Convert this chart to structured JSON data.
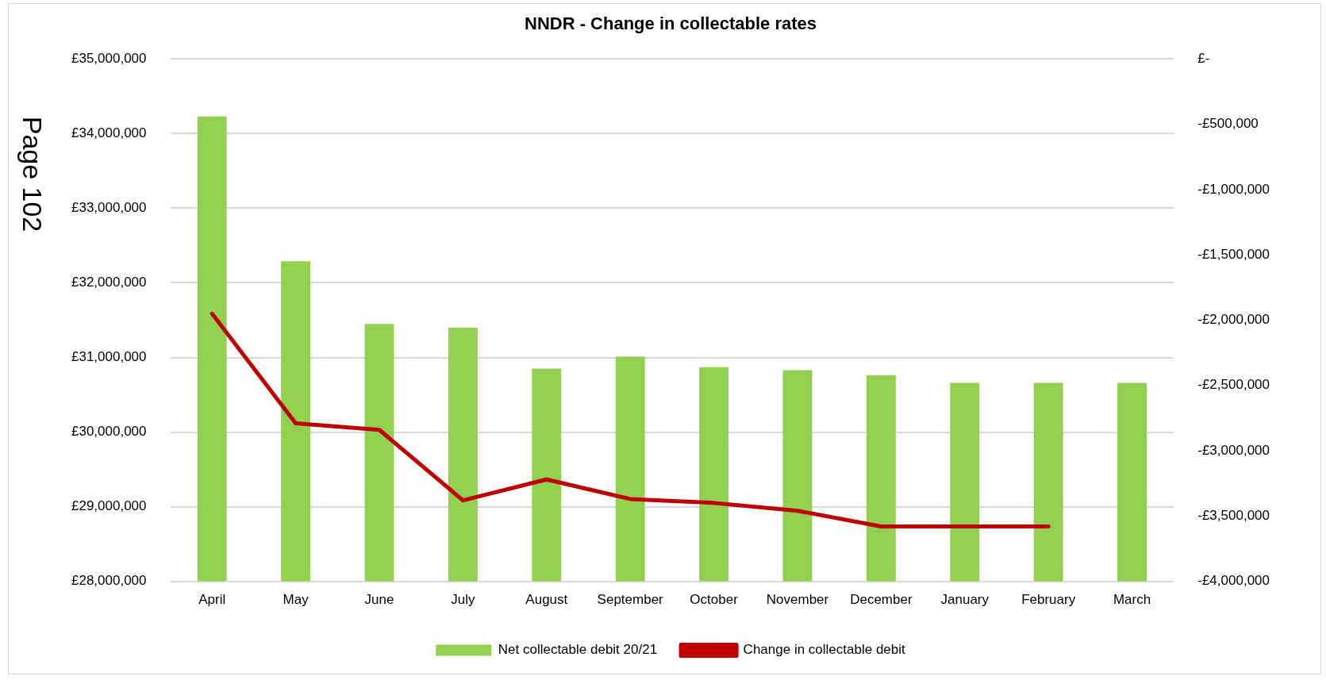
{
  "chart_data": {
    "type": "bar",
    "title": "NNDR - Change in collectable rates",
    "categories": [
      "April",
      "May",
      "June",
      "July",
      "August",
      "September",
      "October",
      "November",
      "December",
      "January",
      "February",
      "March"
    ],
    "series": [
      {
        "name": "Net collectable debit 20/21",
        "color": "#92d050",
        "values": [
          34230000,
          32290000,
          31450000,
          31400000,
          30850000,
          31010000,
          30870000,
          30830000,
          30760000,
          30660000,
          30660000,
          30660000
        ]
      },
      {
        "name": "Change in collectable debit",
        "type": "line",
        "axis": "y2",
        "color": "#c00000",
        "values": [
          -1950000,
          -2790000,
          -2840000,
          -3380000,
          -3220000,
          -3370000,
          -3400000,
          -3460000,
          -3580000,
          -3580000,
          -3580000,
          null
        ]
      }
    ],
    "ylim": [
      28000000,
      35000000
    ],
    "yticks": [
      {
        "value": 28000000,
        "label": "£28,000,000"
      },
      {
        "value": 29000000,
        "label": "£29,000,000"
      },
      {
        "value": 30000000,
        "label": "£30,000,000"
      },
      {
        "value": 31000000,
        "label": "£31,000,000"
      },
      {
        "value": 32000000,
        "label": "£32,000,000"
      },
      {
        "value": 33000000,
        "label": "£33,000,000"
      },
      {
        "value": 34000000,
        "label": "£34,000,000"
      },
      {
        "value": 35000000,
        "label": "£35,000,000"
      }
    ],
    "y2lim": [
      -4000000,
      0
    ],
    "y2ticks": [
      {
        "value": -4000000,
        "label": "-£4,000,000"
      },
      {
        "value": -3500000,
        "label": "-£3,500,000"
      },
      {
        "value": -3000000,
        "label": "-£3,000,000"
      },
      {
        "value": -2500000,
        "label": "-£2,500,000"
      },
      {
        "value": -2000000,
        "label": "-£2,000,000"
      },
      {
        "value": -1500000,
        "label": "-£1,500,000"
      },
      {
        "value": -1000000,
        "label": "-£1,000,000"
      },
      {
        "value": -500000,
        "label": "-£500,000"
      },
      {
        "value": 0,
        "label": "£-"
      }
    ],
    "grid": "y",
    "legend": "bottom",
    "marker": "none",
    "line_style": "solid",
    "annotations": [
      "Page 102"
    ]
  }
}
